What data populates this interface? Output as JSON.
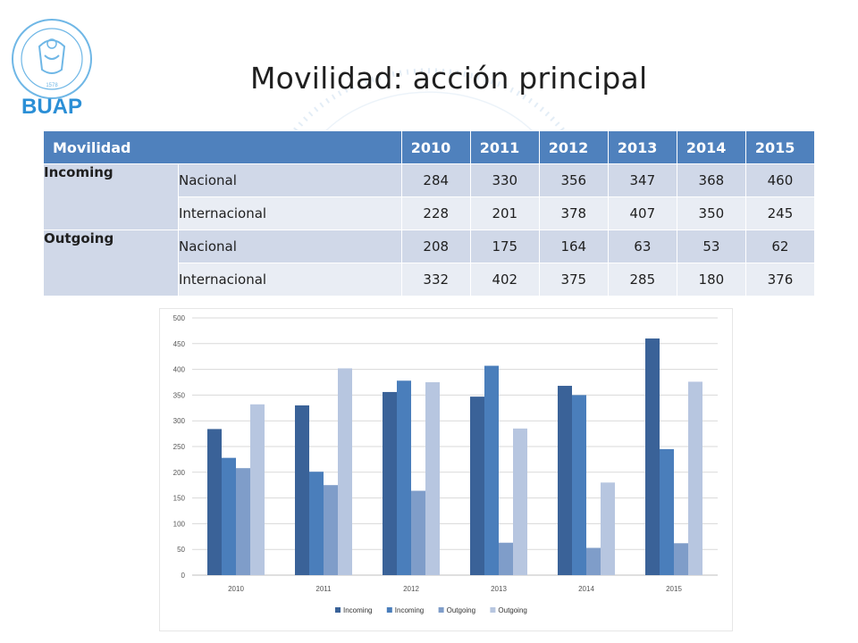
{
  "header": {
    "title": "Movilidad: acción principal",
    "logo_text": "BUAP",
    "logo_ring_text": "BENEMÉRITA UNIVERSIDAD AUTÓNOMA DE PUEBLA",
    "logo_year": "1578"
  },
  "table": {
    "columns": [
      "Movilidad",
      "2010",
      "2011",
      "2012",
      "2013",
      "2014",
      "2015"
    ],
    "groups": [
      {
        "label": "Incoming",
        "rows": [
          {
            "label": "Nacional",
            "values": [
              "284",
              "330",
              "356",
              "347",
              "368",
              "460"
            ]
          },
          {
            "label": "Internacional",
            "values": [
              "228",
              "201",
              "378",
              "407",
              "350",
              "245"
            ]
          }
        ]
      },
      {
        "label": "Outgoing",
        "rows": [
          {
            "label": "Nacional",
            "values": [
              "208",
              "175",
              "164",
              "63",
              "53",
              "62"
            ]
          },
          {
            "label": "Internacional",
            "values": [
              "332",
              "402",
              "375",
              "285",
              "180",
              "376"
            ]
          }
        ]
      }
    ]
  },
  "colors": {
    "header_bg": "#4f81bd",
    "series": [
      "#3a6298",
      "#4a7ebb",
      "#7f9dc9",
      "#b7c6e0"
    ]
  },
  "chart_data": {
    "type": "bar",
    "categories": [
      "2010",
      "2011",
      "2012",
      "2013",
      "2014",
      "2015"
    ],
    "series": [
      {
        "name": "Incoming",
        "values": [
          284,
          330,
          356,
          347,
          368,
          460
        ]
      },
      {
        "name": "Incoming",
        "values": [
          228,
          201,
          378,
          407,
          350,
          245
        ]
      },
      {
        "name": "Outgoing",
        "values": [
          208,
          175,
          164,
          63,
          53,
          62
        ]
      },
      {
        "name": "Outgoing",
        "values": [
          332,
          402,
          375,
          285,
          180,
          376
        ]
      }
    ],
    "ylim": [
      0,
      500
    ],
    "yticks": [
      "0",
      "50",
      "100",
      "150",
      "200",
      "250",
      "300",
      "350",
      "400",
      "450",
      "500"
    ],
    "grid": true,
    "legend_position": "bottom",
    "title": "",
    "xlabel": "",
    "ylabel": ""
  }
}
